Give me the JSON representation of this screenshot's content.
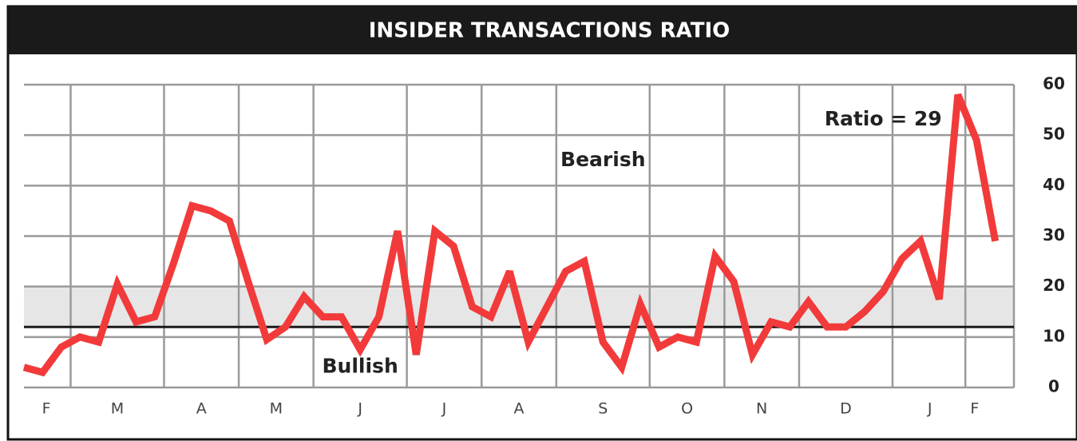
{
  "chart_data": {
    "type": "line",
    "title": "INSIDER TRANSACTIONS RATIO",
    "x": [
      0,
      1,
      2,
      3,
      4,
      5,
      6,
      7,
      8,
      9,
      10,
      11,
      12,
      13,
      14,
      15,
      16,
      17,
      18,
      19,
      20,
      21,
      22,
      23,
      24,
      25,
      26,
      27,
      28,
      29,
      30,
      31,
      32,
      33,
      34,
      35,
      36,
      37,
      38,
      39,
      40,
      41,
      42,
      43,
      44,
      45,
      46,
      47,
      48,
      49,
      50,
      51,
      52
    ],
    "series": [
      {
        "name": "Ratio",
        "color": "#f23a3a",
        "values": [
          4,
          3,
          8,
          10,
          9,
          20.5,
          13,
          14,
          24.5,
          36,
          35,
          33,
          21,
          9.5,
          12,
          18,
          14,
          14,
          7.5,
          14,
          31,
          6.5,
          31,
          28,
          16,
          14,
          23,
          9,
          16,
          23,
          25,
          9,
          4,
          16.5,
          8,
          10,
          9,
          26,
          21,
          6.5,
          13,
          12,
          17,
          12,
          12,
          15,
          19,
          25.5,
          29,
          17.5,
          58,
          49,
          29
        ]
      }
    ],
    "xlim": [
      0,
      53
    ],
    "xticks": [
      {
        "value": 1.2,
        "label": "F"
      },
      {
        "value": 5,
        "label": "M"
      },
      {
        "value": 9.5,
        "label": "A"
      },
      {
        "value": 13.5,
        "label": "M"
      },
      {
        "value": 18,
        "label": "J"
      },
      {
        "value": 22.5,
        "label": "J"
      },
      {
        "value": 26.5,
        "label": "A"
      },
      {
        "value": 31,
        "label": "S"
      },
      {
        "value": 35.5,
        "label": "O"
      },
      {
        "value": 39.5,
        "label": "N"
      },
      {
        "value": 44,
        "label": "D"
      },
      {
        "value": 48.5,
        "label": "J"
      },
      {
        "value": 50.9,
        "label": "F"
      }
    ],
    "xgrid": [
      2.5,
      7.5,
      11.5,
      15.5,
      20.5,
      24.5,
      28.5,
      33.5,
      37.5,
      41.5,
      46.5,
      50.4,
      53
    ],
    "ylim": [
      0,
      60
    ],
    "yticks": [
      0,
      10,
      20,
      30,
      40,
      50,
      60
    ],
    "grid": true,
    "band": [
      12,
      20
    ],
    "reference_line": 12,
    "annotations": [
      {
        "text": "Bearish",
        "x": 31,
        "y": 45
      },
      {
        "text": "Bullish",
        "x": 18,
        "y": 4
      },
      {
        "text": "Ratio = 29",
        "x": 46,
        "y": 53
      }
    ]
  }
}
